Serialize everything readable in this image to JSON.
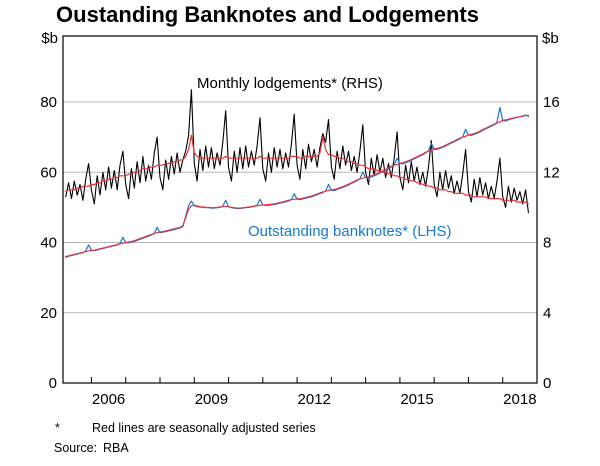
{
  "title": "Oustanding Banknotes and Lodgements",
  "annotations": {
    "lodgements": "Monthly lodgements* (RHS)",
    "banknotes": "Outstanding banknotes* (LHS)"
  },
  "footnote": {
    "marker": "*",
    "text": "Red lines are seasonally adjusted series"
  },
  "source": {
    "label": "Source:",
    "value": "RBA"
  },
  "colors": {
    "blue": "#1878d2",
    "red": "#e8323c",
    "black": "#000000",
    "grid": "#b8b8b8",
    "frame": "#000000"
  },
  "chart_data": {
    "type": "line",
    "title": "Oustanding Banknotes and Lodgements",
    "x_axis": {
      "start_year_month": "2005-04",
      "step": "monthly",
      "range": [
        2005.17,
        2019.0
      ],
      "tick_years": [
        2006,
        2007,
        2008,
        2009,
        2010,
        2011,
        2012,
        2013,
        2014,
        2015,
        2016,
        2017,
        2018
      ],
      "labels": [
        "2006",
        "2009",
        "2012",
        "2015",
        "2018"
      ]
    },
    "left_axis": {
      "unit": "$b",
      "ticks": [
        0,
        20,
        40,
        60,
        80
      ],
      "range": [
        0,
        98.8
      ]
    },
    "right_axis": {
      "unit": "$b",
      "ticks": [
        0,
        4,
        8,
        12,
        16
      ],
      "range": [
        0,
        19.76
      ]
    },
    "series": [
      {
        "name": "Monthly lodgements (RHS, $b)",
        "axis": "right",
        "color_key": "black",
        "width": 1.1,
        "values": [
          10.6,
          11.4,
          10.5,
          11.5,
          10.7,
          11.3,
          10.4,
          11.6,
          12.5,
          11.0,
          10.2,
          11.8,
          10.7,
          12.0,
          11.0,
          12.3,
          11.1,
          12.1,
          11.0,
          12.4,
          13.2,
          11.3,
          10.5,
          12.2,
          11.1,
          12.6,
          11.4,
          12.9,
          11.5,
          12.4,
          11.6,
          13.1,
          14.0,
          11.7,
          11.0,
          12.7,
          11.6,
          12.9,
          11.9,
          13.1,
          12.0,
          12.7,
          13.2,
          14.1,
          16.7,
          12.5,
          11.5,
          13.3,
          12.1,
          13.5,
          12.3,
          13.4,
          12.2,
          13.1,
          12.4,
          13.7,
          15.5,
          12.3,
          11.5,
          13.2,
          12.0,
          13.4,
          12.2,
          13.5,
          12.3,
          13.2,
          12.4,
          13.5,
          15.1,
          12.2,
          11.5,
          13.1,
          12.0,
          13.4,
          12.3,
          13.3,
          12.2,
          13.1,
          12.3,
          13.6,
          15.3,
          12.4,
          11.6,
          13.3,
          12.2,
          13.6,
          12.6,
          13.3,
          12.3,
          13.4,
          14.2,
          13.7,
          15.0,
          12.3,
          11.6,
          13.2,
          12.2,
          13.5,
          12.4,
          13.2,
          12.1,
          12.9,
          12.0,
          13.2,
          14.7,
          12.0,
          11.3,
          12.8,
          11.8,
          13.0,
          12.0,
          12.8,
          11.7,
          12.5,
          11.7,
          12.8,
          14.3,
          11.7,
          11.0,
          12.4,
          11.4,
          12.6,
          11.5,
          12.3,
          11.3,
          12.0,
          11.2,
          12.3,
          13.8,
          11.3,
          10.6,
          12.0,
          11.0,
          12.1,
          11.1,
          11.8,
          10.8,
          11.5,
          10.8,
          11.9,
          13.3,
          10.9,
          10.3,
          11.6,
          10.6,
          11.7,
          10.7,
          11.4,
          10.5,
          11.2,
          10.5,
          11.5,
          12.8,
          10.6,
          10.0,
          11.2,
          10.3,
          11.1,
          10.4,
          10.9,
          10.2,
          11.0,
          9.7
        ]
      },
      {
        "name": "Monthly lodgements seasonally adjusted (RHS, $b)",
        "axis": "right",
        "color_key": "red",
        "width": 1.2,
        "values": [
          10.9,
          11.0,
          11.0,
          11.0,
          11.1,
          11.1,
          11.2,
          11.2,
          11.2,
          11.3,
          11.3,
          11.4,
          11.4,
          11.5,
          11.5,
          11.6,
          11.6,
          11.7,
          11.7,
          11.8,
          11.8,
          11.8,
          11.9,
          11.9,
          12.0,
          12.0,
          12.1,
          12.2,
          12.2,
          12.2,
          12.3,
          12.3,
          12.4,
          12.4,
          12.4,
          12.5,
          12.5,
          12.5,
          12.6,
          12.6,
          12.7,
          12.7,
          12.9,
          13.3,
          14.1,
          13.1,
          12.9,
          12.8,
          12.8,
          12.8,
          12.8,
          12.8,
          12.8,
          12.8,
          12.8,
          12.8,
          12.9,
          12.8,
          12.8,
          12.8,
          12.8,
          12.8,
          12.8,
          12.8,
          12.8,
          12.8,
          12.8,
          12.8,
          12.9,
          12.8,
          12.8,
          12.8,
          12.8,
          12.8,
          12.8,
          12.8,
          12.8,
          12.8,
          12.8,
          12.9,
          12.9,
          12.9,
          12.8,
          12.8,
          12.9,
          12.9,
          12.9,
          12.9,
          12.9,
          13.1,
          14.0,
          13.3,
          13.0,
          13.0,
          12.9,
          12.9,
          12.8,
          12.8,
          12.7,
          12.6,
          12.6,
          12.5,
          12.5,
          12.4,
          12.4,
          12.3,
          12.2,
          12.2,
          12.2,
          12.1,
          12.1,
          12.0,
          12.0,
          11.9,
          11.9,
          11.8,
          11.8,
          11.7,
          11.7,
          11.6,
          11.6,
          11.5,
          11.5,
          11.4,
          11.4,
          11.3,
          11.3,
          11.2,
          11.2,
          11.1,
          11.1,
          11.0,
          11.0,
          11.0,
          10.9,
          10.9,
          10.8,
          10.8,
          10.8,
          10.8,
          10.7,
          10.7,
          10.7,
          10.6,
          10.6,
          10.6,
          10.6,
          10.6,
          10.5,
          10.5,
          10.5,
          10.5,
          10.5,
          10.4,
          10.4,
          10.4,
          10.4,
          10.4,
          10.3,
          10.3,
          10.3,
          10.3,
          10.2
        ]
      },
      {
        "name": "Outstanding banknotes (LHS, $b)",
        "axis": "left",
        "color_key": "blue",
        "width": 1.2,
        "values": [
          35.8,
          36.1,
          36.3,
          36.5,
          36.7,
          36.9,
          37.1,
          37.6,
          39.3,
          37.8,
          37.7,
          37.9,
          38.1,
          38.3,
          38.5,
          38.7,
          38.9,
          39.1,
          39.3,
          39.8,
          41.5,
          40.0,
          39.9,
          40.1,
          40.3,
          40.6,
          40.9,
          41.2,
          41.5,
          41.8,
          42.1,
          42.6,
          44.3,
          42.8,
          42.9,
          43.1,
          43.3,
          43.5,
          43.7,
          43.9,
          44.1,
          44.5,
          47.5,
          50.5,
          51.8,
          50.5,
          50.2,
          50.1,
          50.0,
          49.9,
          49.9,
          49.8,
          49.8,
          49.9,
          50.0,
          50.3,
          52.0,
          50.2,
          49.9,
          49.8,
          49.7,
          49.7,
          49.8,
          49.9,
          50.0,
          50.1,
          50.3,
          50.6,
          52.3,
          50.7,
          50.5,
          50.6,
          50.7,
          50.8,
          51.0,
          51.2,
          51.4,
          51.6,
          51.8,
          52.2,
          53.9,
          52.3,
          52.2,
          52.4,
          52.6,
          52.8,
          53.0,
          53.3,
          53.6,
          53.9,
          54.2,
          54.7,
          56.5,
          54.9,
          54.8,
          55.1,
          55.4,
          55.7,
          56.0,
          56.4,
          56.8,
          57.2,
          57.6,
          58.2,
          60.0,
          58.5,
          58.4,
          58.7,
          59.0,
          59.4,
          59.8,
          60.2,
          60.6,
          61.0,
          61.5,
          62.1,
          64.0,
          62.5,
          62.4,
          62.7,
          63.0,
          63.4,
          63.8,
          64.2,
          64.6,
          65.0,
          65.5,
          66.1,
          68.2,
          66.6,
          66.5,
          66.8,
          67.1,
          67.5,
          67.9,
          68.3,
          68.7,
          69.1,
          69.5,
          70.1,
          72.2,
          70.6,
          70.5,
          70.8,
          71.1,
          71.5,
          71.9,
          72.3,
          72.7,
          73.1,
          73.5,
          74.3,
          78.5,
          74.7,
          74.6,
          74.9,
          75.2,
          75.4,
          75.6,
          75.8,
          76.0,
          76.3,
          75.9
        ]
      },
      {
        "name": "Outstanding banknotes seasonally adjusted (LHS, $b)",
        "axis": "left",
        "color_key": "red",
        "width": 1.2,
        "values": [
          36.0,
          36.2,
          36.4,
          36.6,
          36.8,
          37.0,
          37.2,
          37.4,
          37.6,
          37.7,
          37.8,
          38.0,
          38.2,
          38.4,
          38.6,
          38.8,
          39.0,
          39.2,
          39.4,
          39.6,
          39.8,
          40.0,
          40.1,
          40.3,
          40.5,
          40.8,
          41.1,
          41.4,
          41.7,
          42.0,
          42.3,
          42.6,
          42.8,
          43.0,
          43.1,
          43.3,
          43.5,
          43.7,
          43.9,
          44.1,
          44.3,
          44.8,
          47.0,
          49.5,
          50.5,
          50.6,
          50.4,
          50.2,
          50.1,
          50.0,
          50.0,
          49.9,
          49.9,
          50.0,
          50.1,
          50.2,
          50.3,
          50.2,
          50.0,
          49.9,
          49.8,
          49.8,
          49.9,
          50.0,
          50.1,
          50.2,
          50.4,
          50.5,
          50.6,
          50.7,
          50.7,
          50.8,
          50.9,
          51.0,
          51.2,
          51.4,
          51.6,
          51.8,
          52.0,
          52.2,
          52.3,
          52.4,
          52.4,
          52.6,
          52.8,
          53.0,
          53.2,
          53.5,
          53.8,
          54.1,
          54.4,
          54.6,
          54.8,
          55.0,
          55.1,
          55.3,
          55.6,
          55.9,
          56.2,
          56.6,
          57.0,
          57.4,
          57.8,
          58.1,
          58.3,
          58.6,
          58.7,
          59.0,
          59.3,
          59.6,
          60.0,
          60.4,
          60.8,
          61.2,
          61.7,
          62.0,
          62.2,
          62.6,
          62.7,
          63.0,
          63.3,
          63.6,
          64.0,
          64.4,
          64.8,
          65.2,
          65.7,
          66.0,
          66.2,
          66.7,
          66.8,
          67.0,
          67.3,
          67.7,
          68.1,
          68.5,
          68.9,
          69.3,
          69.7,
          70.0,
          70.2,
          70.7,
          70.8,
          71.0,
          71.3,
          71.7,
          72.1,
          72.5,
          72.9,
          73.3,
          73.7,
          74.0,
          74.3,
          74.8,
          74.9,
          75.1,
          75.3,
          75.5,
          75.7,
          75.8,
          76.0,
          76.1,
          76.2
        ]
      }
    ]
  }
}
